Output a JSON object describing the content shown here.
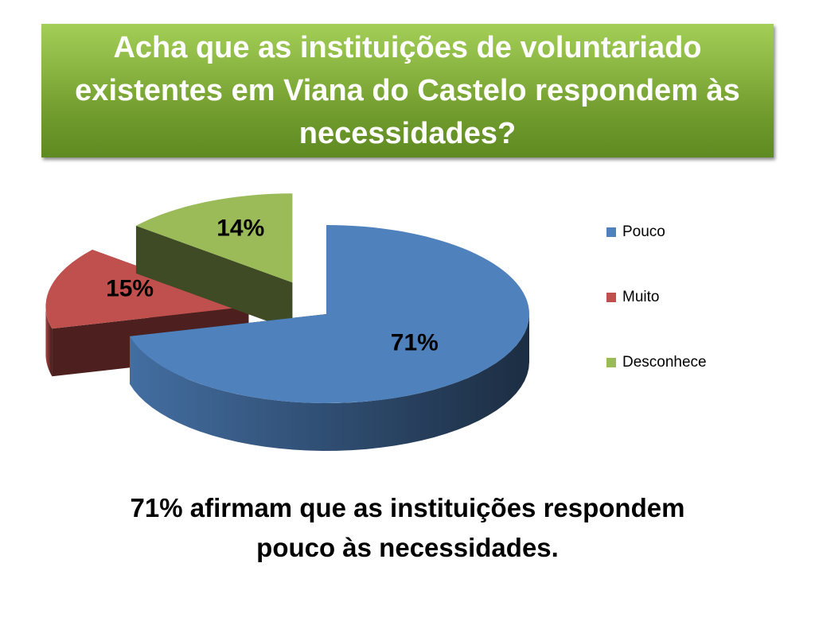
{
  "chart_data": {
    "type": "pie",
    "title": "Acha que as instituições de voluntariado existentes em Viana do Castelo respondem às necessidades?",
    "categories": [
      "Pouco",
      "Muito",
      "Desconhece"
    ],
    "values": [
      71,
      15,
      14
    ],
    "value_labels": [
      "71%",
      "15%",
      "14%"
    ],
    "colors": [
      "#4f81bd",
      "#c0504d",
      "#9bbb59"
    ],
    "annotation": "71%  afirmam que  as instituições respondem pouco às necessidades."
  }
}
